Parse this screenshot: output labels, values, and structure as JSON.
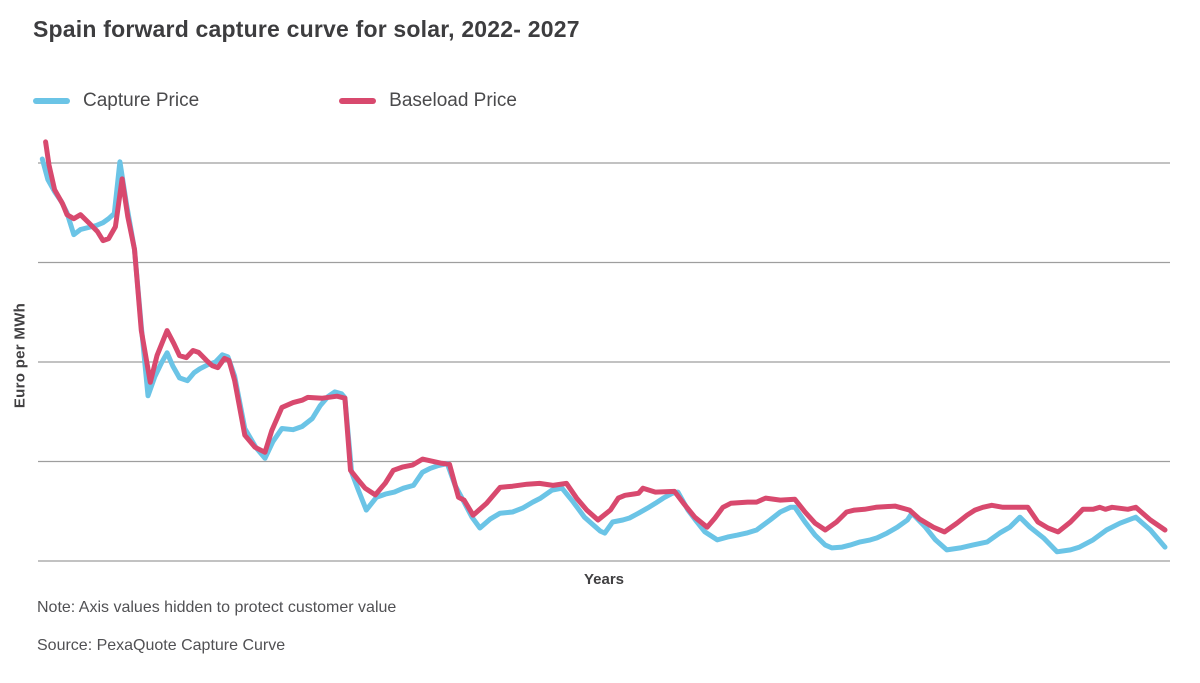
{
  "title": "Spain forward capture curve for solar, 2022- 2027",
  "legend": {
    "items": [
      {
        "label": "Capture Price",
        "color": "#6BC4E6"
      },
      {
        "label": "Baseload Price",
        "color": "#D8496E"
      }
    ]
  },
  "axes": {
    "y_label": "Euro per MWh",
    "x_label": "Years"
  },
  "note": "Note: Axis values hidden to protect customer value",
  "source": "Source: PexaQuote Capture Curve",
  "chart_data": {
    "type": "line",
    "title": "Spain forward capture curve for solar, 2022- 2027",
    "xlabel": "Years",
    "ylabel": "Euro per MWh",
    "x_period": "2022 to 2027, forward curve",
    "axis_values_hidden": true,
    "units": "relative index 0-100 (actual axis values hidden to protect customer value)",
    "xlim": [
      0,
      100
    ],
    "ylim": [
      0,
      110
    ],
    "gridlines": [
      0,
      25,
      50,
      75,
      100
    ],
    "grid": "horizontal-only",
    "legend_position": "top-left",
    "grid_color": "#9E9E9E",
    "line_width": 5,
    "series": [
      {
        "name": "Capture Price",
        "color": "#6BC4E6",
        "points": [
          [
            0.2,
            101.0
          ],
          [
            0.7,
            95.8
          ],
          [
            1.3,
            92.8
          ],
          [
            1.9,
            90.3
          ],
          [
            2.4,
            87.5
          ],
          [
            3.0,
            82.0
          ],
          [
            3.6,
            83.3
          ],
          [
            4.3,
            83.8
          ],
          [
            5.0,
            84.3
          ],
          [
            5.6,
            85.0
          ],
          [
            6.1,
            86.0
          ],
          [
            6.6,
            87.3
          ],
          [
            7.1,
            100.3
          ],
          [
            7.7,
            89.5
          ],
          [
            8.4,
            78.3
          ],
          [
            9.0,
            59.0
          ],
          [
            9.6,
            41.5
          ],
          [
            10.2,
            46.3
          ],
          [
            10.8,
            49.8
          ],
          [
            11.3,
            52.3
          ],
          [
            11.8,
            49.0
          ],
          [
            12.4,
            46.0
          ],
          [
            13.1,
            45.3
          ],
          [
            13.7,
            47.3
          ],
          [
            14.2,
            48.3
          ],
          [
            14.9,
            49.3
          ],
          [
            15.6,
            50.0
          ],
          [
            16.2,
            51.8
          ],
          [
            16.7,
            51.3
          ],
          [
            17.3,
            46.5
          ],
          [
            18.2,
            33.3
          ],
          [
            19.2,
            28.5
          ],
          [
            20.0,
            25.8
          ],
          [
            20.7,
            30.0
          ],
          [
            21.5,
            33.3
          ],
          [
            22.5,
            33.0
          ],
          [
            23.3,
            33.8
          ],
          [
            24.2,
            35.8
          ],
          [
            24.9,
            39.0
          ],
          [
            25.6,
            41.3
          ],
          [
            26.2,
            42.5
          ],
          [
            26.8,
            42.0
          ],
          [
            27.1,
            41.0
          ],
          [
            27.7,
            22.3
          ],
          [
            28.3,
            17.8
          ],
          [
            29.0,
            12.8
          ],
          [
            29.9,
            16.0
          ],
          [
            30.7,
            16.8
          ],
          [
            31.5,
            17.3
          ],
          [
            32.3,
            18.3
          ],
          [
            33.2,
            19.0
          ],
          [
            34.0,
            22.3
          ],
          [
            34.7,
            23.3
          ],
          [
            35.4,
            24.0
          ],
          [
            36.2,
            24.5
          ],
          [
            36.9,
            19.0
          ],
          [
            37.6,
            15.3
          ],
          [
            38.4,
            11.0
          ],
          [
            39.1,
            8.3
          ],
          [
            40.0,
            10.5
          ],
          [
            40.9,
            12.0
          ],
          [
            42.0,
            12.3
          ],
          [
            42.9,
            13.3
          ],
          [
            43.8,
            14.8
          ],
          [
            44.5,
            15.8
          ],
          [
            45.5,
            17.8
          ],
          [
            46.4,
            18.3
          ],
          [
            47.4,
            14.8
          ],
          [
            48.4,
            11.0
          ],
          [
            49.8,
            7.5
          ],
          [
            50.2,
            7.0
          ],
          [
            50.9,
            9.8
          ],
          [
            51.8,
            10.3
          ],
          [
            52.4,
            10.8
          ],
          [
            53.2,
            12.0
          ],
          [
            54.0,
            13.3
          ],
          [
            54.7,
            14.5
          ],
          [
            55.4,
            15.8
          ],
          [
            56.2,
            17.0
          ],
          [
            56.7,
            17.3
          ],
          [
            57.6,
            12.8
          ],
          [
            58.4,
            9.8
          ],
          [
            59.1,
            7.3
          ],
          [
            60.2,
            5.3
          ],
          [
            61.1,
            6.0
          ],
          [
            62.0,
            6.5
          ],
          [
            62.8,
            7.0
          ],
          [
            63.7,
            7.8
          ],
          [
            64.9,
            10.3
          ],
          [
            65.8,
            12.3
          ],
          [
            66.7,
            13.5
          ],
          [
            67.1,
            13.5
          ],
          [
            68.0,
            9.8
          ],
          [
            68.9,
            6.5
          ],
          [
            69.8,
            4.0
          ],
          [
            70.4,
            3.3
          ],
          [
            71.3,
            3.5
          ],
          [
            72.0,
            4.0
          ],
          [
            72.9,
            4.8
          ],
          [
            73.8,
            5.3
          ],
          [
            74.4,
            5.8
          ],
          [
            75.3,
            7.0
          ],
          [
            76.2,
            8.5
          ],
          [
            77.1,
            10.3
          ],
          [
            77.5,
            12.0
          ],
          [
            78.7,
            8.5
          ],
          [
            79.6,
            5.3
          ],
          [
            80.6,
            2.8
          ],
          [
            81.8,
            3.3
          ],
          [
            82.9,
            4.0
          ],
          [
            84.2,
            4.8
          ],
          [
            85.3,
            7.0
          ],
          [
            86.2,
            8.5
          ],
          [
            87.1,
            11.0
          ],
          [
            88.0,
            8.5
          ],
          [
            89.2,
            5.8
          ],
          [
            90.4,
            2.3
          ],
          [
            91.6,
            2.8
          ],
          [
            92.4,
            3.5
          ],
          [
            93.6,
            5.3
          ],
          [
            94.8,
            7.8
          ],
          [
            96.0,
            9.5
          ],
          [
            97.4,
            11.0
          ],
          [
            98.7,
            7.8
          ],
          [
            100,
            3.5
          ]
        ]
      },
      {
        "name": "Baseload Price",
        "color": "#D8496E",
        "points": [
          [
            0.5,
            105.3
          ],
          [
            0.8,
            99.5
          ],
          [
            1.3,
            93.3
          ],
          [
            2.0,
            89.8
          ],
          [
            2.4,
            87.0
          ],
          [
            3.0,
            86.0
          ],
          [
            3.6,
            87.0
          ],
          [
            4.4,
            84.8
          ],
          [
            5.1,
            82.8
          ],
          [
            5.6,
            80.5
          ],
          [
            6.1,
            81.0
          ],
          [
            6.7,
            84.0
          ],
          [
            7.3,
            96.0
          ],
          [
            7.8,
            86.5
          ],
          [
            8.4,
            78.3
          ],
          [
            9.0,
            57.9
          ],
          [
            9.8,
            44.9
          ],
          [
            10.4,
            51.6
          ],
          [
            11.3,
            57.9
          ],
          [
            11.9,
            54.6
          ],
          [
            12.4,
            51.6
          ],
          [
            13.0,
            51.1
          ],
          [
            13.6,
            52.9
          ],
          [
            14.1,
            52.4
          ],
          [
            14.8,
            50.4
          ],
          [
            15.3,
            49.1
          ],
          [
            15.8,
            48.6
          ],
          [
            16.4,
            50.9
          ],
          [
            16.8,
            50.4
          ],
          [
            17.3,
            45.4
          ],
          [
            18.2,
            31.6
          ],
          [
            19.1,
            28.6
          ],
          [
            20.0,
            27.3
          ],
          [
            20.6,
            32.8
          ],
          [
            21.5,
            38.6
          ],
          [
            22.5,
            39.8
          ],
          [
            23.3,
            40.4
          ],
          [
            23.8,
            41.1
          ],
          [
            25.1,
            40.9
          ],
          [
            26.4,
            41.4
          ],
          [
            27.1,
            40.9
          ],
          [
            27.6,
            22.8
          ],
          [
            28.3,
            20.3
          ],
          [
            28.9,
            18.3
          ],
          [
            29.8,
            16.6
          ],
          [
            30.7,
            19.6
          ],
          [
            31.4,
            22.8
          ],
          [
            32.2,
            23.6
          ],
          [
            33.1,
            24.1
          ],
          [
            34.0,
            25.6
          ],
          [
            35.6,
            24.6
          ],
          [
            36.4,
            24.3
          ],
          [
            37.2,
            16.0
          ],
          [
            37.7,
            15.3
          ],
          [
            38.5,
            11.5
          ],
          [
            39.7,
            14.5
          ],
          [
            40.9,
            18.5
          ],
          [
            42.0,
            18.8
          ],
          [
            43.3,
            19.3
          ],
          [
            44.4,
            19.5
          ],
          [
            45.6,
            19.0
          ],
          [
            46.8,
            19.5
          ],
          [
            47.7,
            15.8
          ],
          [
            48.6,
            12.8
          ],
          [
            49.6,
            10.3
          ],
          [
            50.7,
            12.8
          ],
          [
            51.4,
            15.8
          ],
          [
            52.0,
            16.5
          ],
          [
            53.2,
            17.0
          ],
          [
            53.6,
            18.3
          ],
          [
            54.7,
            17.3
          ],
          [
            56.4,
            17.5
          ],
          [
            57.2,
            14.5
          ],
          [
            58.2,
            11.0
          ],
          [
            59.3,
            8.5
          ],
          [
            60.0,
            10.8
          ],
          [
            60.7,
            13.5
          ],
          [
            61.4,
            14.5
          ],
          [
            62.9,
            14.8
          ],
          [
            63.7,
            14.8
          ],
          [
            64.5,
            15.8
          ],
          [
            65.8,
            15.3
          ],
          [
            67.1,
            15.5
          ],
          [
            68.0,
            12.3
          ],
          [
            68.9,
            9.5
          ],
          [
            69.8,
            7.8
          ],
          [
            70.8,
            9.8
          ],
          [
            71.7,
            12.3
          ],
          [
            72.4,
            12.8
          ],
          [
            73.3,
            13.0
          ],
          [
            74.3,
            13.5
          ],
          [
            76.0,
            13.8
          ],
          [
            76.4,
            13.5
          ],
          [
            77.3,
            12.8
          ],
          [
            78.2,
            10.5
          ],
          [
            79.4,
            8.5
          ],
          [
            80.4,
            7.3
          ],
          [
            81.5,
            9.5
          ],
          [
            82.4,
            11.5
          ],
          [
            83.1,
            12.8
          ],
          [
            83.8,
            13.5
          ],
          [
            84.6,
            14.0
          ],
          [
            85.6,
            13.5
          ],
          [
            86.8,
            13.5
          ],
          [
            87.8,
            13.5
          ],
          [
            88.7,
            9.8
          ],
          [
            89.6,
            8.3
          ],
          [
            90.5,
            7.3
          ],
          [
            91.6,
            9.8
          ],
          [
            92.7,
            13.0
          ],
          [
            93.6,
            13.0
          ],
          [
            94.2,
            13.5
          ],
          [
            94.7,
            13.0
          ],
          [
            95.3,
            13.5
          ],
          [
            96.7,
            13.0
          ],
          [
            97.4,
            13.5
          ],
          [
            98.7,
            10.3
          ],
          [
            100,
            7.8
          ]
        ]
      }
    ]
  }
}
